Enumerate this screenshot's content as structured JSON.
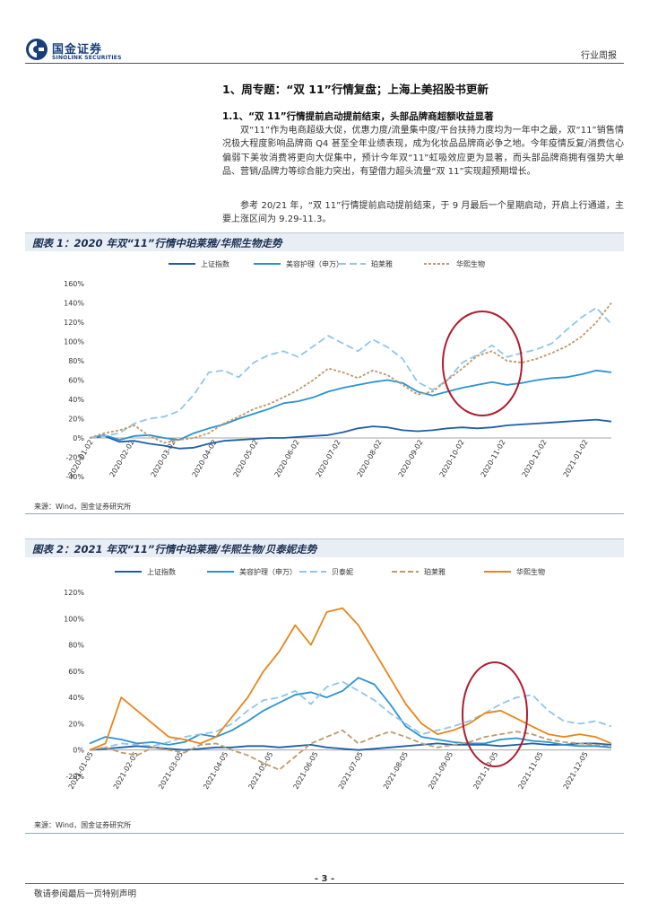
{
  "header": {
    "logo_cn": "国金证券",
    "logo_en": "SINOLINK SECURITIES",
    "report_type": "行业周报"
  },
  "section": {
    "h1": "1、周专题：“双 11”行情复盘；上海上美招股书更新",
    "h2": "1.1、“双 11”行情提前启动提前结束，头部品牌商超额收益显著",
    "p1": "双“11”作为电商超级大促，优惠力度/流量集中度/平台扶持力度均为一年中之最，双“11”销售情况极大程度影响品牌商 Q4 甚至全年业绩表现，成为化妆品品牌商必争之地。今年疫情反复/消费信心偏弱下美妆消费将更向大促集中，预计今年双“11”虹吸效应更为显著，而头部品牌商拥有强势大单品、营销/品牌力等综合能力突出，有望借力超头流量“双 11”实现超预期增长。",
    "p2": "参考 20/21 年，“双 11”行情提前启动提前结束，于 9 月最后一个星期启动，开启上行通道，主要上涨区间为 9.29-11.3。"
  },
  "figure1": {
    "title": "图表 1：2020 年双“11”行情中珀莱雅/华熙生物走势",
    "source": "来源：Wind，国金证券研究所"
  },
  "figure2": {
    "title": "图表 2：2021 年双“11”行情中珀莱雅/华熙生物/贝泰妮走势",
    "source": "来源：Wind，国金证券研究所"
  },
  "footer": {
    "page_number": "- 3 -",
    "note": "敬请参阅最后一页特别声明"
  },
  "colors": {
    "sse": "#1f5fa8",
    "beauty": "#2b93d1",
    "beitaini": "#8fc6e8",
    "proya": "#bf9a6a",
    "bloomage": "#e8861a",
    "highlight_circle": "#b01c2e",
    "logo_blue": "#1a3e7a"
  },
  "chart_data": [
    {
      "type": "line",
      "ylim": [
        -0.4,
        1.6
      ],
      "yticks": [
        "160%",
        "140%",
        "120%",
        "100%",
        "80%",
        "60%",
        "40%",
        "20%",
        "0%",
        "-20%",
        "-40%"
      ],
      "xticks": [
        "2020-01-02",
        "2020-02-02",
        "2020-03-02",
        "2020-04-02",
        "2020-05-02",
        "2020-06-02",
        "2020-07-02",
        "2020-08-02",
        "2020-09-02",
        "2020-10-02",
        "2020-11-02",
        "2020-12-02",
        "2021-01-02"
      ],
      "legend_position": "top",
      "series": [
        {
          "name": "上证指数",
          "color": "#1f5fa8",
          "dash": "",
          "values": [
            0.0,
            0.02,
            -0.04,
            -0.03,
            -0.06,
            -0.08,
            -0.11,
            -0.1,
            -0.06,
            -0.03,
            -0.02,
            -0.01,
            0.0,
            0.0,
            0.01,
            0.02,
            0.03,
            0.06,
            0.1,
            0.12,
            0.11,
            0.08,
            0.07,
            0.08,
            0.1,
            0.11,
            0.1,
            0.11,
            0.13,
            0.14,
            0.15,
            0.16,
            0.17,
            0.18,
            0.19,
            0.17
          ]
        },
        {
          "name": "美容护理（申万）",
          "color": "#2b93d1",
          "dash": "",
          "values": [
            0.0,
            0.03,
            -0.02,
            0.02,
            0.03,
            0.0,
            -0.02,
            0.05,
            0.1,
            0.14,
            0.2,
            0.25,
            0.3,
            0.36,
            0.38,
            0.42,
            0.48,
            0.52,
            0.55,
            0.58,
            0.6,
            0.57,
            0.48,
            0.44,
            0.48,
            0.52,
            0.55,
            0.58,
            0.55,
            0.57,
            0.6,
            0.62,
            0.63,
            0.66,
            0.7,
            0.68
          ]
        },
        {
          "name": "珀莱雅",
          "color": "#8fc6e8",
          "dash": "8,4",
          "values": [
            0.0,
            0.02,
            0.05,
            0.15,
            0.2,
            0.22,
            0.28,
            0.45,
            0.68,
            0.7,
            0.63,
            0.78,
            0.86,
            0.9,
            0.84,
            0.95,
            1.06,
            0.98,
            0.9,
            1.02,
            0.94,
            0.82,
            0.58,
            0.5,
            0.6,
            0.78,
            0.86,
            0.96,
            0.84,
            0.88,
            0.92,
            0.98,
            1.12,
            1.25,
            1.35,
            1.18
          ]
        },
        {
          "name": "华熙生物",
          "color": "#bf9a6a",
          "dash": "3,2",
          "values": [
            0.0,
            0.05,
            0.08,
            0.13,
            0.02,
            -0.05,
            -0.02,
            0.0,
            0.05,
            0.15,
            0.22,
            0.3,
            0.35,
            0.42,
            0.5,
            0.6,
            0.72,
            0.68,
            0.62,
            0.7,
            0.65,
            0.55,
            0.45,
            0.48,
            0.6,
            0.72,
            0.85,
            0.9,
            0.8,
            0.78,
            0.82,
            0.88,
            0.95,
            1.05,
            1.2,
            1.4
          ]
        }
      ]
    },
    {
      "type": "line",
      "ylim": [
        -0.2,
        1.2
      ],
      "yticks": [
        "120%",
        "100%",
        "80%",
        "60%",
        "40%",
        "20%",
        "0%",
        "-20%"
      ],
      "xticks": [
        "2021-01-05",
        "2021-02-05",
        "2021-03-05",
        "2021-04-05",
        "2021-05-05",
        "2021-06-05",
        "2021-07-05",
        "2021-08-05",
        "2021-09-05",
        "2021-10-05",
        "2021-11-05",
        "2021-12-05"
      ],
      "legend_position": "top",
      "series": [
        {
          "name": "上证指数",
          "color": "#1f5fa8",
          "dash": "",
          "values": [
            0.0,
            0.01,
            0.02,
            0.03,
            0.02,
            0.01,
            0.0,
            0.01,
            0.02,
            0.02,
            0.03,
            0.03,
            0.02,
            0.03,
            0.04,
            0.02,
            0.01,
            0.0,
            0.01,
            0.02,
            0.03,
            0.04,
            0.05,
            0.04,
            0.04,
            0.04,
            0.03,
            0.04,
            0.05,
            0.04,
            0.04,
            0.05,
            0.05,
            0.04
          ]
        },
        {
          "name": "美容护理（申万）",
          "color": "#2b93d1",
          "dash": "",
          "values": [
            0.05,
            0.1,
            0.08,
            0.05,
            0.06,
            0.04,
            0.06,
            0.12,
            0.1,
            0.15,
            0.22,
            0.3,
            0.36,
            0.42,
            0.44,
            0.4,
            0.45,
            0.55,
            0.5,
            0.35,
            0.18,
            0.1,
            0.08,
            0.06,
            0.05,
            0.05,
            0.08,
            0.09,
            0.07,
            0.06,
            0.04,
            0.03,
            0.03,
            0.02
          ]
        },
        {
          "name": "贝泰妮",
          "color": "#8fc6e8",
          "dash": "8,4",
          "values": [
            0.0,
            0.02,
            0.05,
            0.04,
            0.03,
            0.06,
            0.1,
            0.12,
            0.14,
            0.2,
            0.3,
            0.38,
            0.4,
            0.45,
            0.35,
            0.48,
            0.52,
            0.45,
            0.38,
            0.28,
            0.2,
            0.12,
            0.15,
            0.18,
            0.22,
            0.28,
            0.35,
            0.4,
            0.42,
            0.3,
            0.22,
            0.2,
            0.22,
            0.18
          ]
        },
        {
          "name": "珀莱雅",
          "color": "#bf9a6a",
          "dash": "6,3",
          "values": [
            0.0,
            0.02,
            -0.02,
            -0.04,
            0.02,
            0.0,
            -0.02,
            0.04,
            0.05,
            0.0,
            -0.04,
            -0.1,
            -0.15,
            -0.05,
            0.05,
            0.1,
            0.15,
            0.05,
            0.1,
            0.14,
            0.1,
            0.05,
            0.02,
            0.04,
            0.06,
            0.1,
            0.12,
            0.14,
            0.12,
            0.08,
            0.06,
            0.05,
            0.04,
            0.03
          ]
        },
        {
          "name": "华熙生物",
          "color": "#e8861a",
          "dash": "",
          "values": [
            0.0,
            0.05,
            0.4,
            0.3,
            0.2,
            0.1,
            0.08,
            0.05,
            0.1,
            0.25,
            0.4,
            0.6,
            0.75,
            0.95,
            0.8,
            1.05,
            1.08,
            0.95,
            0.75,
            0.55,
            0.35,
            0.2,
            0.12,
            0.15,
            0.2,
            0.28,
            0.3,
            0.24,
            0.18,
            0.12,
            0.1,
            0.12,
            0.1,
            0.05
          ]
        }
      ]
    }
  ]
}
